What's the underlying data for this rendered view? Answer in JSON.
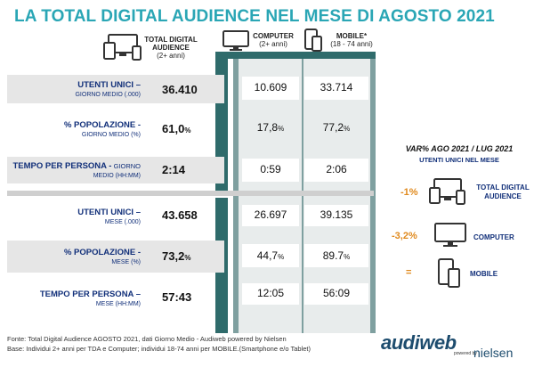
{
  "title": "LA TOTAL DIGITAL AUDIENCE NEL MESE DI AGOSTO 2021",
  "headers": {
    "tda": [
      "TOTAL DIGITAL",
      "AUDIENCE",
      "(2+ anni)"
    ],
    "computer": [
      "COMPUTER",
      "(2+ anni)"
    ],
    "mobile": [
      "MOBILE*",
      "(18 - 74 anni)"
    ]
  },
  "rows": [
    {
      "label": "UTENTI UNICI –",
      "sub": "GIORNO MEDIO (.000)",
      "tda": "36.410",
      "computer": "10.609",
      "mobile": "33.714"
    },
    {
      "label": "% POPOLAZIONE -",
      "sub": "GIORNO MEDIO (%)",
      "tda": "61,0",
      "tda_unit": "%",
      "computer": "17,8",
      "computer_unit": "%",
      "mobile": "77,2",
      "mobile_unit": "%"
    },
    {
      "label": "TEMPO PER PERSONA -",
      "label2": " GIORNO",
      "sub": "MEDIO (HH:MM)",
      "tda": "2:14",
      "computer": "0:59",
      "mobile": "2:06"
    },
    {
      "label": "UTENTI UNICI –",
      "sub": "MESE (.000)",
      "tda": "43.658",
      "computer": "26.697",
      "mobile": "39.135"
    },
    {
      "label": "% POPOLAZIONE -",
      "sub": "MESE (%)",
      "tda": "73,2",
      "tda_unit": "%",
      "computer": "44,7",
      "computer_unit": "%",
      "mobile": "89.7",
      "mobile_unit": "%"
    },
    {
      "label": "TEMPO PER PERSONA –",
      "sub": "MESE (HH:MM)",
      "tda": "57:43",
      "computer": "12:05",
      "mobile": "56:09"
    }
  ],
  "side": {
    "title": "VAR% AGO 2021 / LUG 2021",
    "subtitle": "UTENTI UNICI NEL MESE",
    "items": [
      {
        "value": "-1%",
        "label1": "TOTAL DIGITAL",
        "label2": "AUDIENCE"
      },
      {
        "value": "-3,2%",
        "label1": "COMPUTER",
        "label2": ""
      },
      {
        "value": "=",
        "label1": "MOBILE",
        "label2": ""
      }
    ]
  },
  "footer": {
    "line1": "Fonte: Total Digital Audience AGOSTO 2021, dati Giorno Medio - Audiweb powered by Nielsen",
    "line2": "Base:  Individui 2+ anni per TDA e Computer; individui 18-74 anni per MOBILE.(Smartphone e/o Tablet)"
  },
  "logo": {
    "brand": "audiweb",
    "powered": "powered by",
    "partner": "nielsen"
  },
  "colors": {
    "title": "#2aa6b5",
    "label": "#12307a",
    "accent": "#e08a1e",
    "panel": "#7fa0a0"
  }
}
